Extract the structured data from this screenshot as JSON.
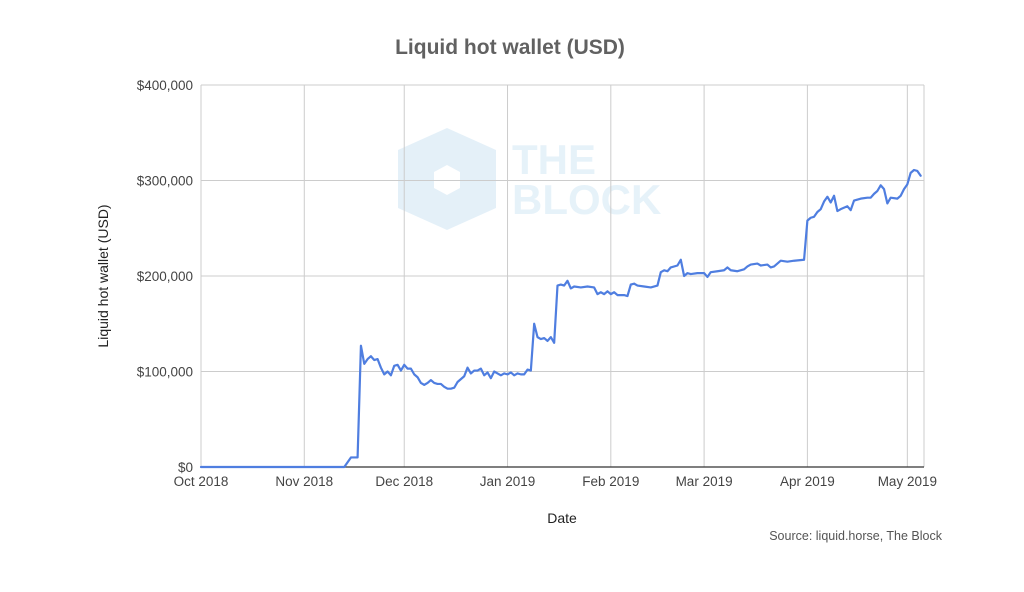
{
  "chart_data": {
    "type": "line",
    "title": "Liquid hot wallet (USD)",
    "xlabel": "Date",
    "ylabel": "Liquid hot wallet (USD)",
    "source": "Source: liquid.horse, The Block",
    "watermark": [
      "THE",
      "BLOCK"
    ],
    "x_ticks": [
      {
        "date": "2018-10-01",
        "label": "Oct 2018"
      },
      {
        "date": "2018-11-01",
        "label": "Nov 2018"
      },
      {
        "date": "2018-12-01",
        "label": "Dec 2018"
      },
      {
        "date": "2019-01-01",
        "label": "Jan 2019"
      },
      {
        "date": "2019-02-01",
        "label": "Feb 2019"
      },
      {
        "date": "2019-03-01",
        "label": "Mar 2019"
      },
      {
        "date": "2019-04-01",
        "label": "Apr 2019"
      },
      {
        "date": "2019-05-01",
        "label": "May 2019"
      }
    ],
    "xlim": [
      "2018-10-01",
      "2019-05-06"
    ],
    "y_ticks": [
      {
        "value": 0,
        "label": "$0"
      },
      {
        "value": 100000,
        "label": "$100,000"
      },
      {
        "value": 200000,
        "label": "$200,000"
      },
      {
        "value": 300000,
        "label": "$300,000"
      },
      {
        "value": 400000,
        "label": "$400,000"
      }
    ],
    "ylim": [
      0,
      400000
    ],
    "grid": true,
    "colors": {
      "line": "#4f7ee0",
      "grid": "#cccccc",
      "axis": "#333333",
      "watermark": "#cfe5f4"
    },
    "series": [
      {
        "values": [
          [
            "2018-10-01",
            0
          ],
          [
            "2018-11-13",
            0
          ],
          [
            "2018-11-15",
            10000
          ],
          [
            "2018-11-17",
            10000
          ],
          [
            "2018-11-18",
            127000
          ],
          [
            "2018-11-19",
            108000
          ],
          [
            "2018-11-20",
            113000
          ],
          [
            "2018-11-21",
            116000
          ],
          [
            "2018-11-22",
            112000
          ],
          [
            "2018-11-23",
            113000
          ],
          [
            "2018-11-24",
            104000
          ],
          [
            "2018-11-25",
            97000
          ],
          [
            "2018-11-26",
            100000
          ],
          [
            "2018-11-27",
            96000
          ],
          [
            "2018-11-28",
            106000
          ],
          [
            "2018-11-29",
            107000
          ],
          [
            "2018-11-30",
            101000
          ],
          [
            "2018-12-01",
            107000
          ],
          [
            "2018-12-02",
            103000
          ],
          [
            "2018-12-03",
            103000
          ],
          [
            "2018-12-04",
            97000
          ],
          [
            "2018-12-05",
            94000
          ],
          [
            "2018-12-06",
            88000
          ],
          [
            "2018-12-07",
            86000
          ],
          [
            "2018-12-08",
            88000
          ],
          [
            "2018-12-09",
            91000
          ],
          [
            "2018-12-10",
            88000
          ],
          [
            "2018-12-11",
            87000
          ],
          [
            "2018-12-12",
            87000
          ],
          [
            "2018-12-13",
            84000
          ],
          [
            "2018-12-14",
            82000
          ],
          [
            "2018-12-15",
            82000
          ],
          [
            "2018-12-16",
            83000
          ],
          [
            "2018-12-17",
            89000
          ],
          [
            "2018-12-18",
            92000
          ],
          [
            "2018-12-19",
            95000
          ],
          [
            "2018-12-20",
            104000
          ],
          [
            "2018-12-21",
            98000
          ],
          [
            "2018-12-22",
            101000
          ],
          [
            "2018-12-23",
            101000
          ],
          [
            "2018-12-24",
            103000
          ],
          [
            "2018-12-25",
            96000
          ],
          [
            "2018-12-26",
            99000
          ],
          [
            "2018-12-27",
            93000
          ],
          [
            "2018-12-28",
            100000
          ],
          [
            "2018-12-29",
            98000
          ],
          [
            "2018-12-30",
            96000
          ],
          [
            "2018-12-31",
            98000
          ],
          [
            "2019-01-01",
            97000
          ],
          [
            "2019-01-02",
            99000
          ],
          [
            "2019-01-03",
            96000
          ],
          [
            "2019-01-04",
            98000
          ],
          [
            "2019-01-05",
            97000
          ],
          [
            "2019-01-06",
            97000
          ],
          [
            "2019-01-07",
            102000
          ],
          [
            "2019-01-08",
            101000
          ],
          [
            "2019-01-09",
            150000
          ],
          [
            "2019-01-10",
            136000
          ],
          [
            "2019-01-11",
            134000
          ],
          [
            "2019-01-12",
            135000
          ],
          [
            "2019-01-13",
            132000
          ],
          [
            "2019-01-14",
            136000
          ],
          [
            "2019-01-15",
            130000
          ],
          [
            "2019-01-16",
            190000
          ],
          [
            "2019-01-17",
            191000
          ],
          [
            "2019-01-18",
            190000
          ],
          [
            "2019-01-19",
            195000
          ],
          [
            "2019-01-20",
            187000
          ],
          [
            "2019-01-21",
            189000
          ],
          [
            "2019-01-23",
            188000
          ],
          [
            "2019-01-25",
            189000
          ],
          [
            "2019-01-27",
            188000
          ],
          [
            "2019-01-28",
            181000
          ],
          [
            "2019-01-29",
            183000
          ],
          [
            "2019-01-30",
            181000
          ],
          [
            "2019-01-31",
            184000
          ],
          [
            "2019-02-01",
            181000
          ],
          [
            "2019-02-02",
            183000
          ],
          [
            "2019-02-03",
            180000
          ],
          [
            "2019-02-05",
            180000
          ],
          [
            "2019-02-06",
            179000
          ],
          [
            "2019-02-07",
            191000
          ],
          [
            "2019-02-08",
            192000
          ],
          [
            "2019-02-09",
            190000
          ],
          [
            "2019-02-11",
            189000
          ],
          [
            "2019-02-13",
            188000
          ],
          [
            "2019-02-15",
            190000
          ],
          [
            "2019-02-16",
            204000
          ],
          [
            "2019-02-17",
            206000
          ],
          [
            "2019-02-18",
            205000
          ],
          [
            "2019-02-19",
            209000
          ],
          [
            "2019-02-21",
            211000
          ],
          [
            "2019-02-22",
            217000
          ],
          [
            "2019-02-23",
            200000
          ],
          [
            "2019-02-24",
            203000
          ],
          [
            "2019-02-25",
            202000
          ],
          [
            "2019-02-27",
            203000
          ],
          [
            "2019-03-01",
            203000
          ],
          [
            "2019-03-02",
            199000
          ],
          [
            "2019-03-03",
            204000
          ],
          [
            "2019-03-05",
            205000
          ],
          [
            "2019-03-07",
            206000
          ],
          [
            "2019-03-08",
            209000
          ],
          [
            "2019-03-09",
            206000
          ],
          [
            "2019-03-11",
            205000
          ],
          [
            "2019-03-13",
            207000
          ],
          [
            "2019-03-14",
            210000
          ],
          [
            "2019-03-15",
            212000
          ],
          [
            "2019-03-17",
            213000
          ],
          [
            "2019-03-18",
            211000
          ],
          [
            "2019-03-20",
            212000
          ],
          [
            "2019-03-21",
            209000
          ],
          [
            "2019-03-22",
            210000
          ],
          [
            "2019-03-24",
            216000
          ],
          [
            "2019-03-26",
            215000
          ],
          [
            "2019-03-28",
            216000
          ],
          [
            "2019-03-31",
            217000
          ],
          [
            "2019-04-01",
            258000
          ],
          [
            "2019-04-02",
            261000
          ],
          [
            "2019-04-03",
            262000
          ],
          [
            "2019-04-04",
            267000
          ],
          [
            "2019-04-05",
            270000
          ],
          [
            "2019-04-06",
            278000
          ],
          [
            "2019-04-07",
            283000
          ],
          [
            "2019-04-08",
            277000
          ],
          [
            "2019-04-09",
            284000
          ],
          [
            "2019-04-10",
            268000
          ],
          [
            "2019-04-11",
            270000
          ],
          [
            "2019-04-13",
            273000
          ],
          [
            "2019-04-14",
            269000
          ],
          [
            "2019-04-15",
            279000
          ],
          [
            "2019-04-17",
            281000
          ],
          [
            "2019-04-19",
            282000
          ],
          [
            "2019-04-20",
            282000
          ],
          [
            "2019-04-21",
            286000
          ],
          [
            "2019-04-22",
            289000
          ],
          [
            "2019-04-23",
            295000
          ],
          [
            "2019-04-24",
            291000
          ],
          [
            "2019-04-25",
            276000
          ],
          [
            "2019-04-26",
            282000
          ],
          [
            "2019-04-28",
            281000
          ],
          [
            "2019-04-29",
            284000
          ],
          [
            "2019-04-30",
            291000
          ],
          [
            "2019-05-01",
            296000
          ],
          [
            "2019-05-02",
            308000
          ],
          [
            "2019-05-03",
            311000
          ],
          [
            "2019-05-04",
            310000
          ],
          [
            "2019-05-05",
            305000
          ]
        ]
      }
    ]
  }
}
